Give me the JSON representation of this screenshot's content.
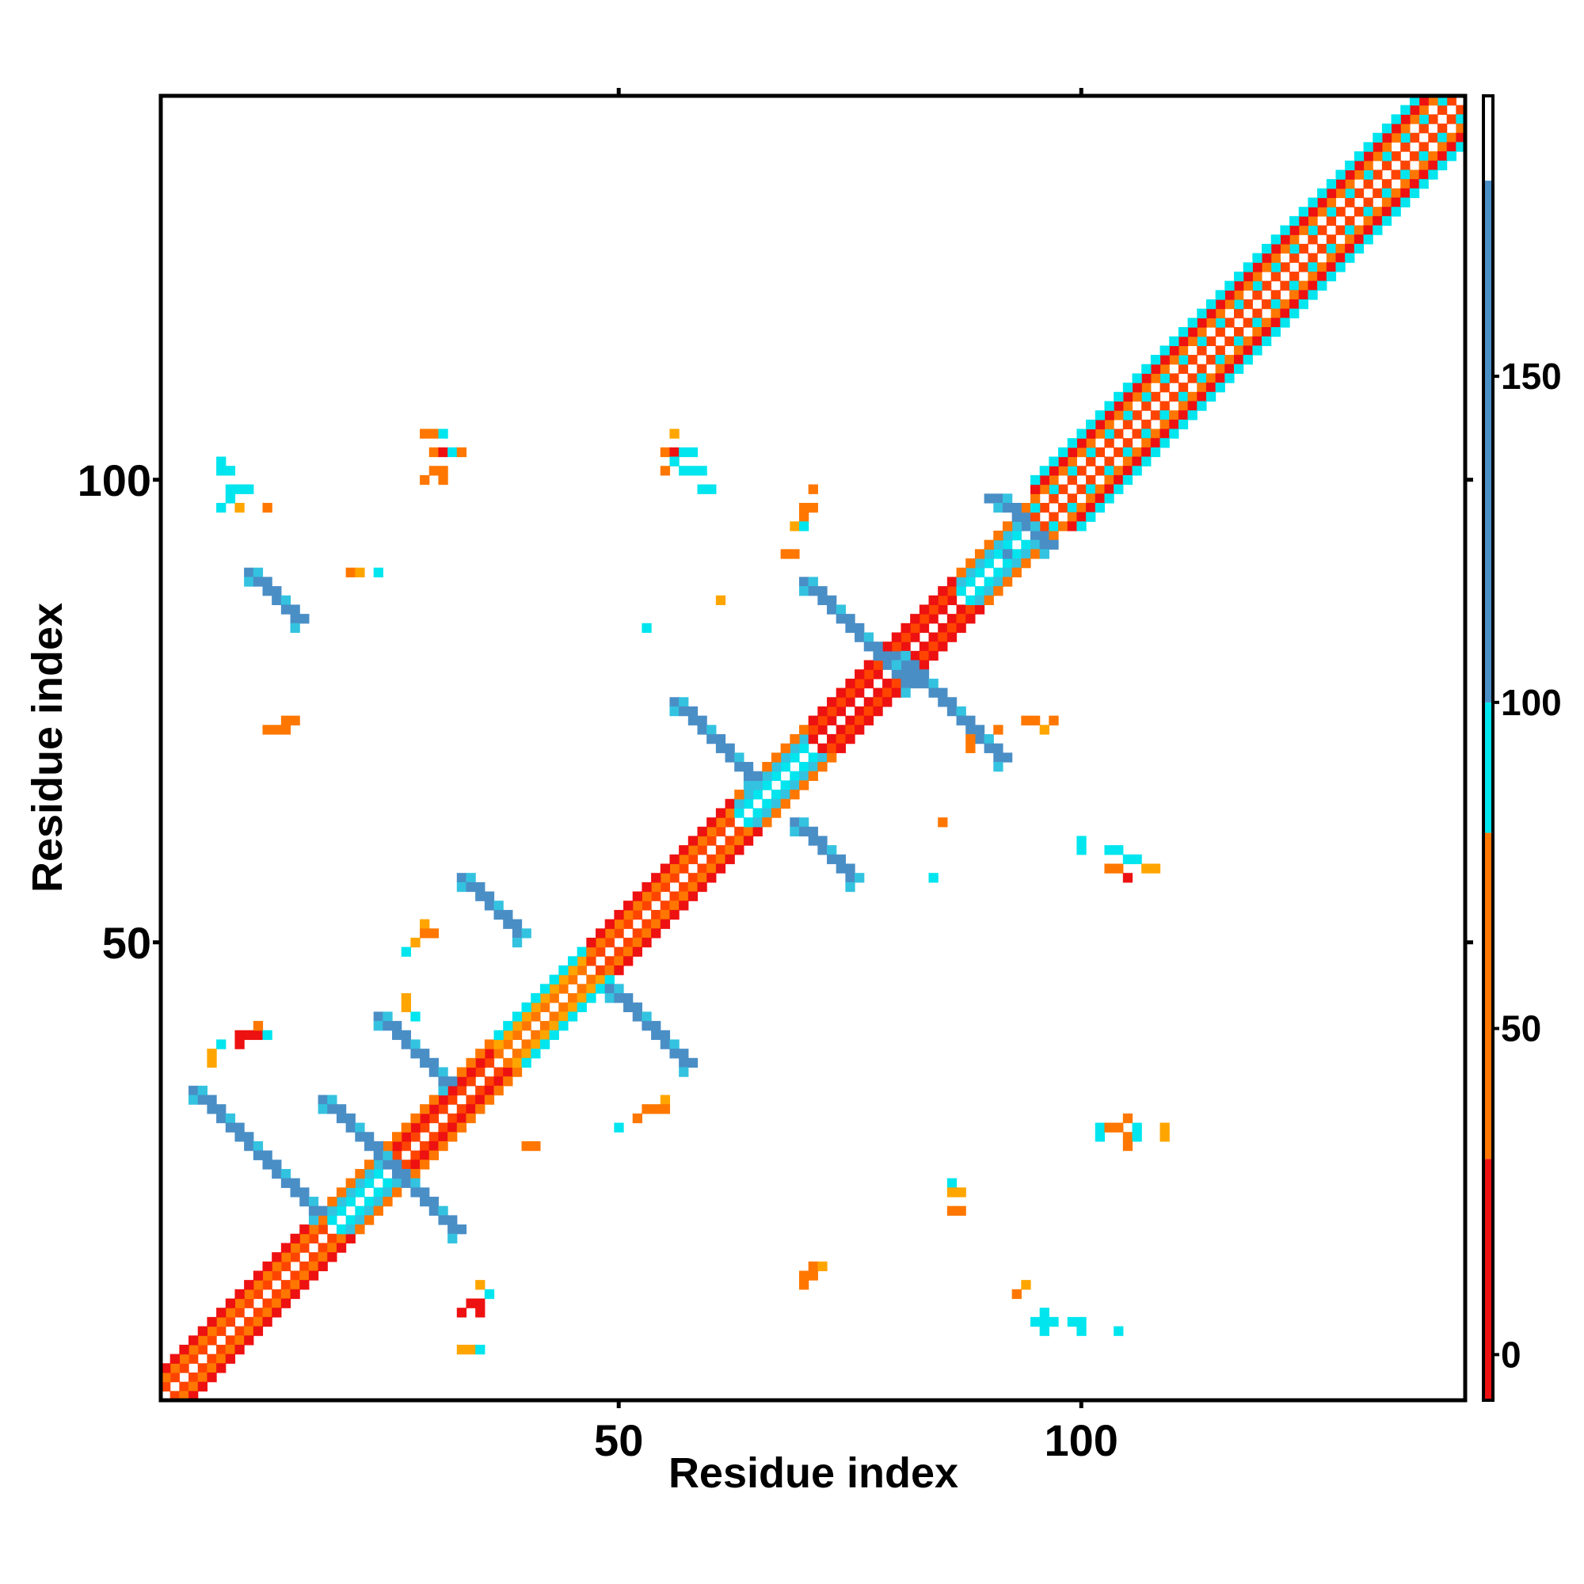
{
  "chart_data": {
    "type": "heatmap",
    "title": "",
    "xlabel": "Residue index",
    "ylabel": "Residue index",
    "xlim": [
      0.5,
      141.5
    ],
    "ylim": [
      0.5,
      141.5
    ],
    "x_ticks": [
      {
        "value": 50,
        "label": "50"
      },
      {
        "value": 100,
        "label": "100"
      }
    ],
    "y_ticks": [
      {
        "value": 50,
        "label": "50"
      },
      {
        "value": 100,
        "label": "100"
      }
    ],
    "grid": false,
    "colorbar": {
      "range": [
        -7,
        193
      ],
      "ticks": [
        {
          "value": 0,
          "label": "0"
        },
        {
          "value": 50,
          "label": "50"
        },
        {
          "value": 100,
          "label": "100"
        },
        {
          "value": 150,
          "label": "150"
        }
      ],
      "bins": [
        {
          "from": -7,
          "to": 30,
          "color": "#ee1111"
        },
        {
          "from": 30,
          "to": 80,
          "color": "#ff7700"
        },
        {
          "from": 80,
          "to": 100,
          "color": "#00e5ee"
        },
        {
          "from": 100,
          "to": 180,
          "color": "#4a8ec6"
        },
        {
          "from": 180,
          "to": 193,
          "color": "#ffffff"
        }
      ]
    },
    "palette": {
      "red": "#ee1111",
      "orange_red": "#ff4400",
      "orange": "#ff7700",
      "amber": "#ffa500",
      "cyan": "#00e5ee",
      "light_blue": "#33c3e0",
      "steel_blue": "#4a8ec6"
    },
    "diagonal_bands": [
      {
        "from": 1,
        "to": 18,
        "offsets": {
          "1": "orange_red",
          "2": "orange",
          "3": "red"
        }
      },
      {
        "from": 19,
        "to": 24,
        "offsets": {
          "1": "cyan",
          "2": "light_blue",
          "3": "orange"
        }
      },
      {
        "from": 25,
        "to": 36,
        "offsets": {
          "1": "orange_red",
          "2": "red",
          "3": "orange"
        }
      },
      {
        "from": 37,
        "to": 46,
        "offsets": {
          "1": "orange",
          "2": "amber",
          "3": "cyan"
        }
      },
      {
        "from": 47,
        "to": 62,
        "offsets": {
          "1": "orange_red",
          "2": "orange",
          "3": "red"
        }
      },
      {
        "from": 63,
        "to": 70,
        "offsets": {
          "1": "cyan",
          "2": "light_blue",
          "3": "orange"
        }
      },
      {
        "from": 71,
        "to": 86,
        "offsets": {
          "1": "red",
          "2": "orange_red",
          "3": "red"
        }
      },
      {
        "from": 87,
        "to": 94,
        "offsets": {
          "1": "cyan",
          "2": "light_blue",
          "3": "orange"
        }
      },
      {
        "from": 95,
        "to": 141,
        "offsets": {
          "1": "orange_red",
          "2": "cyan",
          "3": "orange",
          "4": "red",
          "5": "cyan"
        }
      }
    ],
    "antiparallel_strands": [
      {
        "i_start": 4,
        "j_start": 34,
        "length": 14,
        "color": "steel_blue",
        "edge": "light_blue"
      },
      {
        "i_start": 18,
        "j_start": 33,
        "length": 15,
        "color": "steel_blue",
        "edge": "light_blue"
      },
      {
        "i_start": 24,
        "j_start": 42,
        "length": 8,
        "color": "steel_blue",
        "edge": "light_blue"
      },
      {
        "i_start": 49,
        "j_start": 45,
        "length": 9,
        "color": "steel_blue",
        "edge": "light_blue"
      },
      {
        "i_start": 33,
        "j_start": 57,
        "length": 7,
        "color": "steel_blue",
        "edge": "light_blue"
      },
      {
        "i_start": 10,
        "j_start": 90,
        "length": 6,
        "color": "steel_blue",
        "edge": "light_blue"
      },
      {
        "i_start": 56,
        "j_start": 76,
        "length": 9,
        "color": "steel_blue",
        "edge": "light_blue"
      },
      {
        "i_start": 70,
        "j_start": 89,
        "length": 12,
        "color": "steel_blue",
        "edge": "light_blue"
      },
      {
        "i_start": 80,
        "j_start": 81,
        "length": 12,
        "color": "steel_blue",
        "edge": "light_blue"
      },
      {
        "i_start": 69,
        "j_start": 63,
        "length": 7,
        "color": "steel_blue",
        "edge": "light_blue"
      },
      {
        "i_start": 91,
        "j_start": 98,
        "length": 6,
        "color": "steel_blue",
        "edge": "light_blue"
      }
    ],
    "scattered_contacts": [
      [
        7,
        102,
        "cyan"
      ],
      [
        7,
        101,
        "cyan"
      ],
      [
        8,
        101,
        "cyan"
      ],
      [
        8,
        99,
        "cyan"
      ],
      [
        9,
        99,
        "cyan"
      ],
      [
        10,
        99,
        "cyan"
      ],
      [
        8,
        98,
        "cyan"
      ],
      [
        7,
        97,
        "cyan"
      ],
      [
        9,
        97,
        "amber"
      ],
      [
        12,
        97,
        "orange"
      ],
      [
        21,
        90,
        "orange"
      ],
      [
        22,
        90,
        "amber"
      ],
      [
        24,
        90,
        "cyan"
      ],
      [
        12,
        73,
        "orange"
      ],
      [
        13,
        73,
        "orange"
      ],
      [
        14,
        73,
        "orange"
      ],
      [
        14,
        74,
        "orange"
      ],
      [
        15,
        74,
        "orange"
      ],
      [
        29,
        105,
        "orange"
      ],
      [
        30,
        105,
        "orange"
      ],
      [
        31,
        105,
        "cyan"
      ],
      [
        30,
        103,
        "orange"
      ],
      [
        31,
        103,
        "red"
      ],
      [
        32,
        103,
        "cyan"
      ],
      [
        33,
        103,
        "orange"
      ],
      [
        30,
        101,
        "orange"
      ],
      [
        31,
        101,
        "orange"
      ],
      [
        31,
        100,
        "orange"
      ],
      [
        29,
        100,
        "orange"
      ],
      [
        56,
        105,
        "amber"
      ],
      [
        55,
        103,
        "orange"
      ],
      [
        56,
        103,
        "red"
      ],
      [
        57,
        103,
        "cyan"
      ],
      [
        58,
        103,
        "cyan"
      ],
      [
        56,
        102,
        "cyan"
      ],
      [
        57,
        101,
        "cyan"
      ],
      [
        58,
        101,
        "cyan"
      ],
      [
        59,
        101,
        "cyan"
      ],
      [
        55,
        101,
        "orange"
      ],
      [
        59,
        99,
        "cyan"
      ],
      [
        60,
        99,
        "cyan"
      ],
      [
        71,
        99,
        "orange"
      ],
      [
        70,
        97,
        "orange"
      ],
      [
        71,
        97,
        "orange"
      ],
      [
        70,
        96,
        "orange"
      ],
      [
        69,
        95,
        "amber"
      ],
      [
        70,
        95,
        "cyan"
      ],
      [
        69,
        92,
        "orange"
      ],
      [
        68,
        92,
        "orange"
      ],
      [
        61,
        87,
        "amber"
      ],
      [
        53,
        84,
        "cyan"
      ],
      [
        90,
        98,
        "steel_blue"
      ],
      [
        92,
        92,
        "steel_blue"
      ],
      [
        94,
        74,
        "orange"
      ],
      [
        95,
        74,
        "orange"
      ],
      [
        97,
        74,
        "orange"
      ],
      [
        96,
        73,
        "amber"
      ],
      [
        91,
        73,
        "orange"
      ],
      [
        88,
        72,
        "orange"
      ],
      [
        88,
        71,
        "orange"
      ],
      [
        100,
        61,
        "cyan"
      ],
      [
        100,
        60,
        "cyan"
      ],
      [
        103,
        60,
        "cyan"
      ],
      [
        104,
        60,
        "cyan"
      ],
      [
        103,
        58,
        "orange"
      ],
      [
        104,
        58,
        "orange"
      ],
      [
        105,
        59,
        "cyan"
      ],
      [
        106,
        59,
        "cyan"
      ],
      [
        105,
        57,
        "red"
      ],
      [
        107,
        58,
        "amber"
      ],
      [
        108,
        58,
        "amber"
      ],
      [
        84,
        57,
        "cyan"
      ],
      [
        85,
        63,
        "orange"
      ],
      [
        105,
        31,
        "orange"
      ],
      [
        105,
        29,
        "orange"
      ],
      [
        106,
        30,
        "cyan"
      ],
      [
        106,
        29,
        "cyan"
      ],
      [
        102,
        30,
        "cyan"
      ],
      [
        102,
        29,
        "cyan"
      ],
      [
        103,
        30,
        "orange"
      ],
      [
        104,
        30,
        "orange"
      ],
      [
        105,
        28,
        "orange"
      ],
      [
        109,
        30,
        "amber"
      ],
      [
        109,
        29,
        "amber"
      ],
      [
        86,
        24,
        "cyan"
      ],
      [
        86,
        23,
        "amber"
      ],
      [
        87,
        23,
        "amber"
      ],
      [
        86,
        21,
        "orange"
      ],
      [
        87,
        21,
        "orange"
      ],
      [
        94,
        13,
        "amber"
      ],
      [
        93,
        12,
        "orange"
      ],
      [
        96,
        10,
        "cyan"
      ],
      [
        96,
        9,
        "cyan"
      ],
      [
        97,
        9,
        "cyan"
      ],
      [
        99,
        9,
        "cyan"
      ],
      [
        100,
        9,
        "cyan"
      ],
      [
        95,
        9,
        "cyan"
      ],
      [
        96,
        8,
        "cyan"
      ],
      [
        100,
        8,
        "cyan"
      ],
      [
        104,
        8,
        "cyan"
      ],
      [
        71,
        15,
        "orange"
      ],
      [
        72,
        15,
        "amber"
      ],
      [
        70,
        14,
        "orange"
      ],
      [
        71,
        14,
        "orange"
      ],
      [
        70,
        13,
        "orange"
      ],
      [
        35,
        13,
        "amber"
      ],
      [
        36,
        12,
        "cyan"
      ],
      [
        34,
        11,
        "red"
      ],
      [
        35,
        11,
        "red"
      ],
      [
        33,
        10,
        "red"
      ],
      [
        35,
        10,
        "red"
      ],
      [
        34,
        6,
        "amber"
      ],
      [
        33,
        6,
        "amber"
      ],
      [
        35,
        6,
        "cyan"
      ],
      [
        9,
        40,
        "red"
      ],
      [
        10,
        40,
        "red"
      ],
      [
        11,
        40,
        "red"
      ],
      [
        9,
        39,
        "red"
      ],
      [
        11,
        41,
        "orange"
      ],
      [
        12,
        40,
        "cyan"
      ],
      [
        7,
        39,
        "cyan"
      ],
      [
        6,
        38,
        "amber"
      ],
      [
        6,
        37,
        "amber"
      ],
      [
        27,
        44,
        "amber"
      ],
      [
        27,
        43,
        "amber"
      ],
      [
        28,
        42,
        "cyan"
      ],
      [
        29,
        52,
        "amber"
      ],
      [
        29,
        51,
        "orange"
      ],
      [
        30,
        51,
        "orange"
      ],
      [
        28,
        50,
        "amber"
      ],
      [
        27,
        49,
        "cyan"
      ],
      [
        55,
        33,
        "amber"
      ],
      [
        53,
        32,
        "orange"
      ],
      [
        54,
        32,
        "orange"
      ],
      [
        55,
        32,
        "orange"
      ],
      [
        52,
        31,
        "orange"
      ],
      [
        50,
        30,
        "cyan"
      ],
      [
        40,
        28,
        "orange"
      ],
      [
        41,
        28,
        "orange"
      ]
    ]
  }
}
